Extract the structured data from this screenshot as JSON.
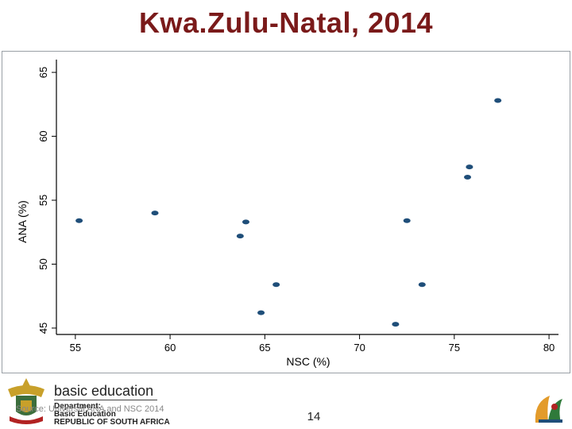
{
  "slide": {
    "title": "Kwa.Zulu-Natal, 2014",
    "page_number": "14",
    "source_note": "Source: Universal ANA and NSC 2014"
  },
  "footer": {
    "brand": "basic education",
    "department_lines": [
      "Department:",
      "Basic Education",
      "REPUBLIC OF SOUTH AFRICA"
    ]
  },
  "colors": {
    "title": "#7a1a1a",
    "marker": "#1f4e79",
    "axis": "#000000"
  },
  "chart_data": {
    "type": "scatter",
    "title": "",
    "xlabel": "NSC (%)",
    "ylabel": "ANA (%)",
    "xlim": [
      54,
      80.5
    ],
    "ylim": [
      44.5,
      66
    ],
    "xticks": [
      55,
      60,
      65,
      70,
      75,
      80
    ],
    "yticks": [
      45,
      50,
      55,
      60,
      65
    ],
    "grid": false,
    "points": [
      {
        "x": 55.2,
        "y": 53.4
      },
      {
        "x": 59.2,
        "y": 54.0
      },
      {
        "x": 63.7,
        "y": 52.2
      },
      {
        "x": 64.0,
        "y": 53.3
      },
      {
        "x": 64.8,
        "y": 46.2
      },
      {
        "x": 65.6,
        "y": 48.4
      },
      {
        "x": 71.9,
        "y": 45.3
      },
      {
        "x": 72.5,
        "y": 53.4
      },
      {
        "x": 73.3,
        "y": 48.4
      },
      {
        "x": 75.7,
        "y": 56.8
      },
      {
        "x": 75.8,
        "y": 57.6
      },
      {
        "x": 77.3,
        "y": 62.8
      }
    ]
  }
}
